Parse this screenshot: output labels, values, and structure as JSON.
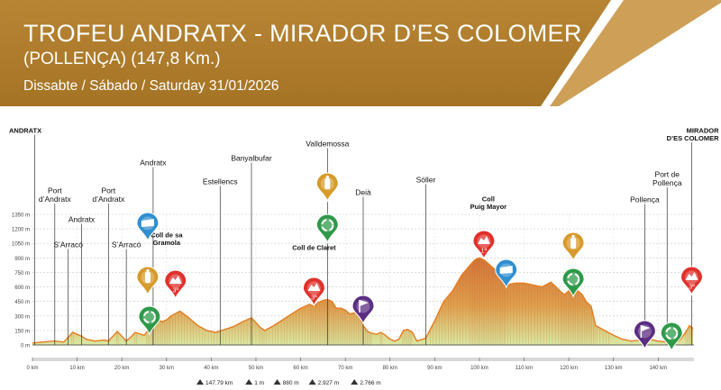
{
  "header": {
    "title": "TROFEU ANDRATX - MIRADOR D’ES COLOMER",
    "subtitle": "(POLLENÇA) (147,8 Km.)",
    "date": "Dissabte / Sábado / Saturday 31/01/2026",
    "colors": {
      "banner": "#b07c2a",
      "banner_dark": "#8e5f17",
      "stripe": "#ffffff"
    }
  },
  "chart_data": {
    "type": "area",
    "title": "",
    "xlabel": "",
    "ylabel": "",
    "xlim": [
      0,
      148
    ],
    "ylim": [
      0,
      1350
    ],
    "x_ticks": [
      0,
      10,
      20,
      30,
      40,
      50,
      60,
      70,
      80,
      90,
      100,
      110,
      120,
      130,
      140
    ],
    "x_tick_labels": [
      "0 km",
      "10 km",
      "20 km",
      "30 km",
      "40 km",
      "50 km",
      "60 km",
      "70 km",
      "80 km",
      "90 km",
      "100 km",
      "110 km",
      "120 km",
      "130 km",
      "140 km"
    ],
    "y_ticks": [
      0,
      150,
      300,
      450,
      600,
      750,
      900,
      1050,
      1200,
      1350
    ],
    "y_tick_labels": [
      "0 m",
      "150 m",
      "300 m",
      "450 m",
      "600 m",
      "750 m",
      "900 m",
      "1050 m",
      "1200 m",
      "1350 m"
    ],
    "grid": true,
    "profile": {
      "x": [
        0,
        2,
        5,
        7,
        8,
        9,
        10,
        11,
        12,
        14,
        16,
        17,
        18,
        19,
        20,
        21,
        22,
        23,
        25,
        26,
        27,
        28,
        29,
        30,
        31,
        33,
        35,
        37,
        39,
        41,
        43,
        45,
        47,
        49,
        51,
        52,
        54,
        56,
        58,
        60,
        62,
        63,
        64,
        65,
        66,
        67,
        68,
        69,
        70,
        71,
        72,
        73,
        74,
        75,
        76,
        77,
        78,
        79,
        80,
        81,
        82,
        83,
        84,
        85,
        86,
        88,
        90,
        92,
        94,
        96,
        98,
        99,
        100,
        101,
        102,
        103,
        104,
        105,
        106,
        108,
        110,
        112,
        114,
        116,
        118,
        119,
        120,
        121,
        122,
        123,
        124,
        125,
        126,
        128,
        130,
        132,
        134,
        136,
        138,
        140,
        142,
        144,
        145,
        146,
        147,
        147.8
      ],
      "y": [
        20,
        30,
        40,
        30,
        80,
        130,
        110,
        90,
        60,
        40,
        50,
        40,
        90,
        140,
        90,
        40,
        80,
        130,
        100,
        160,
        220,
        260,
        240,
        260,
        300,
        350,
        280,
        200,
        150,
        130,
        160,
        190,
        240,
        280,
        180,
        150,
        200,
        260,
        320,
        380,
        420,
        400,
        440,
        460,
        470,
        450,
        380,
        380,
        360,
        320,
        330,
        340,
        200,
        140,
        120,
        110,
        130,
        100,
        60,
        40,
        60,
        150,
        160,
        130,
        40,
        70,
        250,
        450,
        560,
        720,
        830,
        880,
        900,
        880,
        840,
        800,
        760,
        700,
        620,
        640,
        640,
        620,
        600,
        650,
        560,
        520,
        560,
        580,
        560,
        520,
        440,
        400,
        200,
        150,
        100,
        60,
        40,
        50,
        60,
        40,
        30,
        20,
        60,
        120,
        200,
        170
      ]
    },
    "annotations": [
      {
        "label": "ANDRATX",
        "km": 0.5,
        "bold": true
      },
      {
        "label": "Port d’Andratx",
        "km": 5
      },
      {
        "label": "S’Arracó",
        "km": 8
      },
      {
        "label": "Andratx",
        "km": 11
      },
      {
        "label": "Port d’Andratx",
        "km": 17
      },
      {
        "label": "S’Arracó",
        "km": 21
      },
      {
        "label": "Andratx",
        "km": 27
      },
      {
        "label": "Coll de sa Gramola",
        "km": 30,
        "bold": true
      },
      {
        "label": "Estellencs",
        "km": 42
      },
      {
        "label": "Banyalbufar",
        "km": 49
      },
      {
        "label": "Coll de Claret",
        "km": 63,
        "bold": true
      },
      {
        "label": "Valldemossa",
        "km": 66
      },
      {
        "label": "Deià",
        "km": 74
      },
      {
        "label": "Sóller",
        "km": 88
      },
      {
        "label": "Coll Puig Mayor",
        "km": 102,
        "bold": true
      },
      {
        "label": "Pollença",
        "km": 137
      },
      {
        "label": "Port de Pollença",
        "km": 142
      },
      {
        "label": "MIRADOR D’ES COLOMER",
        "km": 147.5,
        "bold": true
      }
    ],
    "markers": [
      {
        "type": "feed-zone",
        "km": 27,
        "label": ""
      },
      {
        "type": "drinks",
        "km": 27,
        "label": ""
      },
      {
        "type": "recycle",
        "km": 27,
        "label": ""
      },
      {
        "type": "mountain",
        "km": 32,
        "label": "3ª"
      },
      {
        "type": "mountain",
        "km": 63,
        "label": "3ª"
      },
      {
        "type": "drinks",
        "km": 66,
        "label": ""
      },
      {
        "type": "recycle",
        "km": 66,
        "label": ""
      },
      {
        "type": "sprint-flag",
        "km": 74,
        "label": ""
      },
      {
        "type": "mountain",
        "km": 101,
        "label": "1ª"
      },
      {
        "type": "feed-zone",
        "km": 106,
        "label": ""
      },
      {
        "type": "drinks",
        "km": 121,
        "label": ""
      },
      {
        "type": "recycle",
        "km": 121,
        "label": ""
      },
      {
        "type": "sprint-flag",
        "km": 137,
        "label": ""
      },
      {
        "type": "recycle",
        "km": 143,
        "label": ""
      },
      {
        "type": "mountain",
        "km": 147.5,
        "label": "3ª"
      }
    ],
    "stats": [
      "147.79 km",
      "1 m",
      "880 m",
      "2.927 m",
      "2.766 m"
    ],
    "colors": {
      "fill_low": "#d9e9a3",
      "fill_mid": "#e0a04e",
      "fill_high": "#d5763a",
      "outline": "#e57c1f",
      "mountain": "#e0312b",
      "feed": "#2f8fd0",
      "drinks": "#d79a2a",
      "recycle": "#2e9a49",
      "flag": "#5b2d82"
    }
  }
}
